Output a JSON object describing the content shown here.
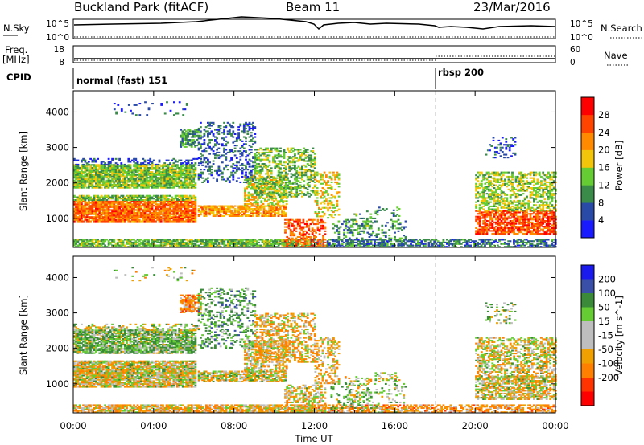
{
  "header": {
    "title": "Buckland Park (fitACF)",
    "beam": "Beam 11",
    "date": "23/Mar/2016"
  },
  "top_panels": {
    "nsky_label": "N.Sky",
    "nsky_ticks": [
      "10^5",
      "10^0"
    ],
    "nsearch_label": "N.Search",
    "nsearch_ticks": [
      "10^5",
      "10^0"
    ],
    "freq_label_1": "Freq.",
    "freq_label_2": "[MHz]",
    "freq_ticks": [
      "18",
      "8"
    ],
    "nave_label": "Nave",
    "nave_ticks": [
      "60",
      "0"
    ],
    "cpid_label": "CPID",
    "cpid_segments": [
      {
        "label": "normal (fast) 151",
        "start_hour": 0
      },
      {
        "label": "rbsp 200",
        "start_hour": 18
      }
    ]
  },
  "colors": {
    "power": [
      "#1a1aff",
      "#2a4aa8",
      "#3a8a4a",
      "#66cc33",
      "#f2c40a",
      "#ff8a00",
      "#ff4400",
      "#ff0000"
    ],
    "velocity": [
      "#1a1aee",
      "#3a50a8",
      "#3a8a3a",
      "#66cc33",
      "#bebebe",
      "#bebebe",
      "#f0a000",
      "#ff7f00",
      "#ff3300",
      "#ff0000"
    ]
  },
  "chart_data": [
    {
      "type": "heatmap",
      "name": "power",
      "ylabel": "Slant Range [km]",
      "yticks": [
        1000,
        2000,
        3000,
        4000
      ],
      "ylim": [
        180,
        4600
      ],
      "xlim": [
        0,
        24
      ],
      "colorbar_label": "Power [dB]",
      "colorbar_ticks": [
        4,
        8,
        12,
        16,
        20,
        24,
        28
      ],
      "colorbar_range": [
        0,
        32
      ]
    },
    {
      "type": "heatmap",
      "name": "velocity",
      "ylabel": "Slant Range [km]",
      "yticks": [
        1000,
        2000,
        3000,
        4000
      ],
      "ylim": [
        180,
        4600
      ],
      "xlim": [
        0,
        24
      ],
      "colorbar_label": "Velocity [m s^-1]",
      "colorbar_ticks": [
        "200",
        "100",
        "50",
        "15",
        "-15",
        "-50",
        "-100",
        "-200"
      ]
    }
  ],
  "xaxis": {
    "label": "Time UT",
    "ticks": [
      "00:00",
      "04:00",
      "08:00",
      "12:00",
      "16:00",
      "20:00",
      "00:00"
    ]
  }
}
